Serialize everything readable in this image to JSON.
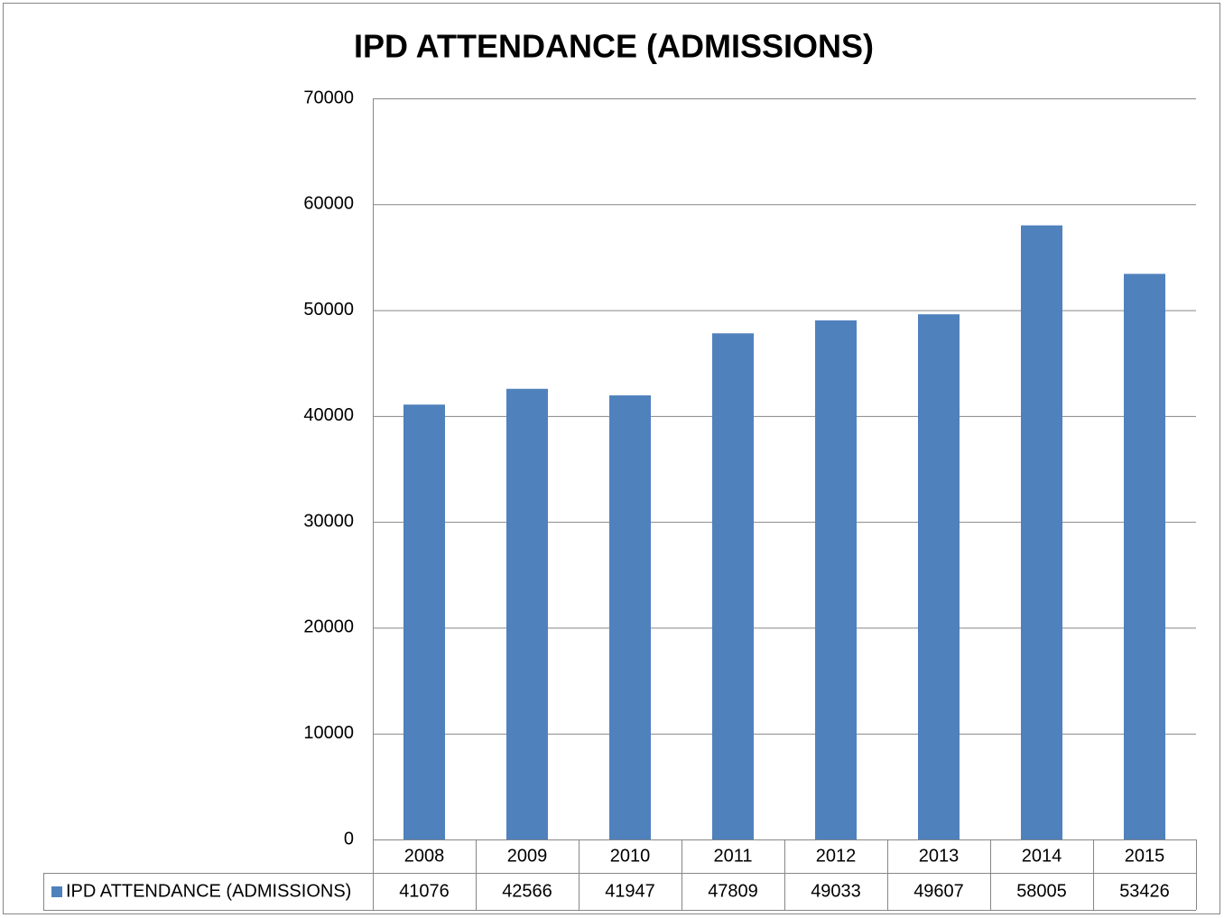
{
  "chart_data": {
    "type": "bar",
    "title": "IPD ATTENDANCE (ADMISSIONS)",
    "categories": [
      "2008",
      "2009",
      "2010",
      "2011",
      "2012",
      "2013",
      "2014",
      "2015"
    ],
    "series": [
      {
        "name": "IPD ATTENDANCE (ADMISSIONS)",
        "color": "#4f81bd",
        "values": [
          41076,
          42566,
          41947,
          47809,
          49033,
          49607,
          58005,
          53426
        ]
      }
    ],
    "ylim": [
      0,
      70000
    ],
    "yticks": [
      0,
      10000,
      20000,
      30000,
      40000,
      50000,
      60000,
      70000
    ],
    "grid": true,
    "data_table": true
  }
}
